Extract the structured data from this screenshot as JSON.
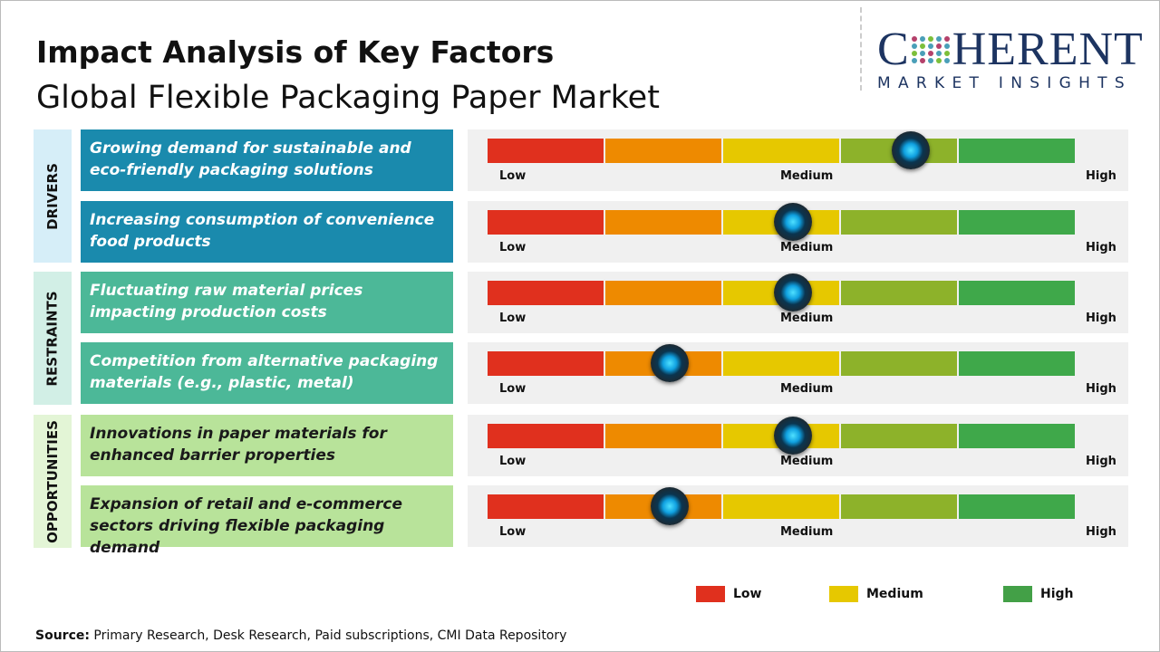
{
  "header": {
    "title": "Impact Analysis of Key Factors",
    "subtitle": "Global Flexible Packaging Paper Market"
  },
  "logo": {
    "line1": "COHERENT",
    "line2": "MARKET INSIGHTS"
  },
  "colors": {
    "low": "#e0301e",
    "low_medium": "#ee8a00",
    "medium": "#e6c800",
    "medium_high": "#8db22a",
    "high": "#3fa84a"
  },
  "chart_data": {
    "type": "gauge",
    "scale_labels": [
      "Low",
      "Medium",
      "High"
    ],
    "scale_range": [
      0,
      1
    ],
    "categories": [
      {
        "name": "DRIVERS",
        "color": "#d6eef8",
        "factor_color": "#1a8aad",
        "factors": [
          {
            "label": "Growing demand for sustainable and eco-friendly packaging solutions",
            "impact": 0.72
          },
          {
            "label": "Increasing consumption of convenience food products",
            "impact": 0.52
          }
        ]
      },
      {
        "name": "RESTRAINTS",
        "color": "#d2efe6",
        "factor_color": "#4cb898",
        "factors": [
          {
            "label": "Fluctuating raw material prices impacting production costs",
            "impact": 0.52
          },
          {
            "label": "Competition from alternative packaging materials (e.g., plastic, metal)",
            "impact": 0.31
          }
        ]
      },
      {
        "name": "OPPORTUNITIES",
        "color": "#e3f5d6",
        "factor_color": "#b8e39a",
        "factors": [
          {
            "label": "Innovations in paper materials for enhanced barrier properties",
            "impact": 0.52
          },
          {
            "label": "Expansion of retail and e-commerce sectors driving flexible packaging demand",
            "impact": 0.31
          }
        ]
      }
    ],
    "legend": [
      {
        "label": "Low",
        "color": "#e0301e"
      },
      {
        "label": "Medium",
        "color": "#e6c800"
      },
      {
        "label": "High",
        "color": "#43a047"
      }
    ]
  },
  "source": {
    "label": "Source:",
    "text": " Primary Research, Desk Research, Paid subscriptions, CMI Data Repository"
  }
}
